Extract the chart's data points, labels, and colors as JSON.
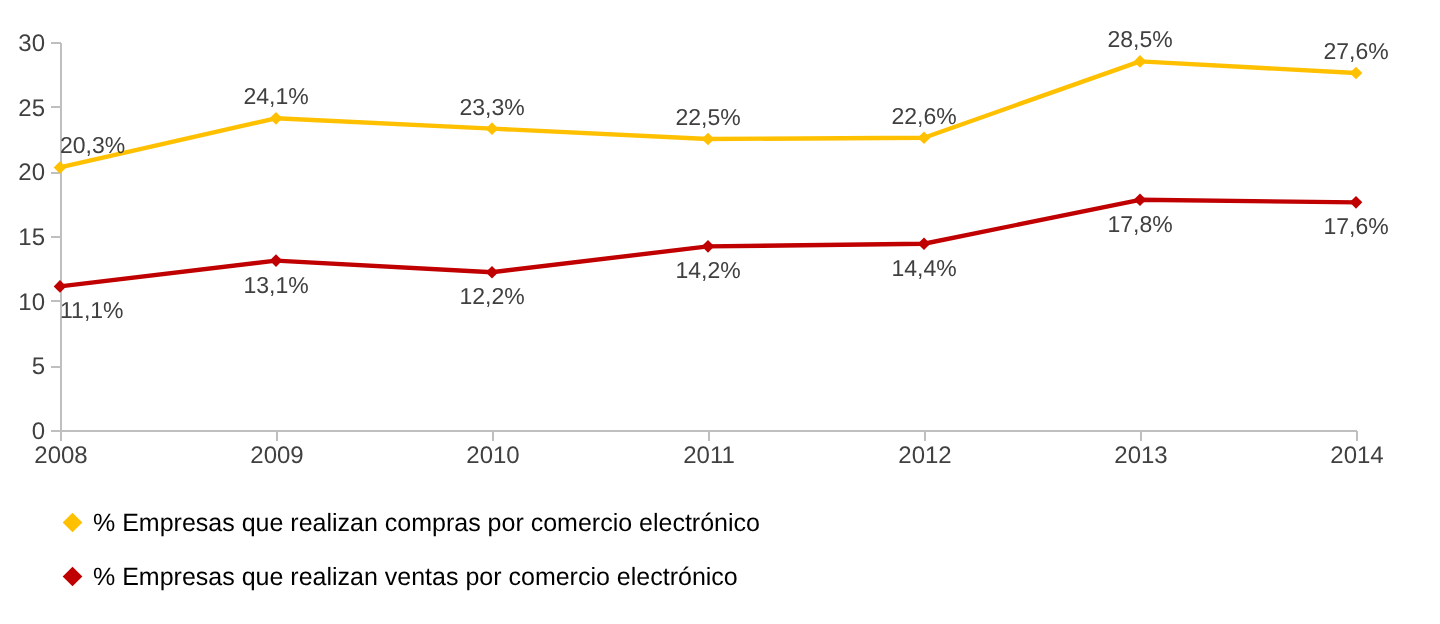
{
  "chart_data": {
    "type": "line",
    "categories": [
      "2008",
      "2009",
      "2010",
      "2011",
      "2012",
      "2013",
      "2014"
    ],
    "ylim": [
      0,
      30
    ],
    "yticks": [
      0,
      5,
      10,
      15,
      20,
      25,
      30
    ],
    "grid": false,
    "legend": "bottom",
    "marker": "diamond",
    "line_style": "solid",
    "series": [
      {
        "name": "% Empresas que realizan compras por comercio electrónico",
        "color": "#ffc000",
        "values": [
          20.3,
          24.1,
          23.3,
          22.5,
          22.6,
          28.5,
          27.6
        ],
        "value_labels": [
          "20,3%",
          "24,1%",
          "23,3%",
          "22,5%",
          "22,6%",
          "28,5%",
          "27,6%"
        ]
      },
      {
        "name": "% Empresas que realizan ventas por comercio electrónico",
        "color": "#c00000",
        "values": [
          11.1,
          13.1,
          12.2,
          14.2,
          14.4,
          17.8,
          17.6
        ],
        "value_labels": [
          "11,1%",
          "13,1%",
          "12,2%",
          "14,2%",
          "14,4%",
          "17,8%",
          "17,6%"
        ]
      }
    ]
  }
}
